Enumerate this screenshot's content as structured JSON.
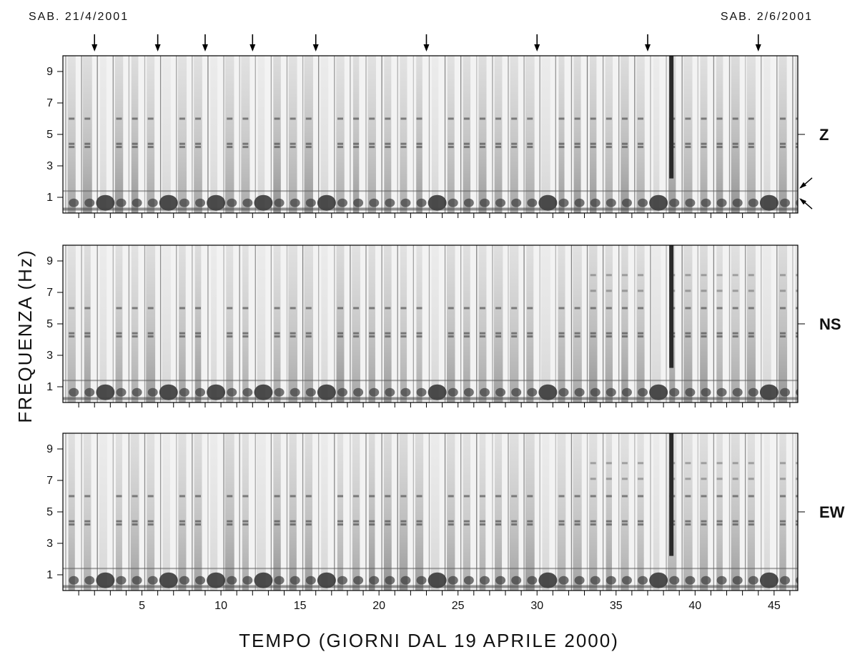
{
  "chart_data": {
    "type": "heatmap",
    "xlabel": "TEMPO (GIORNI DAL 19 APRILE 2000)",
    "ylabel": "FREQUENZA (Hz)",
    "xlim": [
      0,
      46.5
    ],
    "ylim": [
      0,
      10
    ],
    "x_tick_labels": [
      "5",
      "10",
      "15",
      "20",
      "25",
      "30",
      "35",
      "40",
      "45"
    ],
    "x_tick_values": [
      5,
      10,
      15,
      20,
      25,
      30,
      35,
      40,
      45
    ],
    "y_tick_labels": [
      "1",
      "3",
      "5",
      "7",
      "9"
    ],
    "y_tick_values": [
      1,
      3,
      5,
      7,
      9
    ],
    "annotations": {
      "start_note": "SAB. 21/4/2001",
      "end_note": "SAB. 2/6/2001",
      "weekend_arrows_days": [
        2,
        6,
        9,
        12,
        16,
        23,
        30,
        37,
        44
      ],
      "resonance_arrows_hz": [
        1.6,
        0.9
      ]
    },
    "panels": [
      {
        "component": "Z",
        "reference_hz": 5
      },
      {
        "component": "NS",
        "reference_hz": 5
      },
      {
        "component": "EW",
        "reference_hz": 5
      }
    ],
    "features": {
      "daily_stripes": true,
      "spectral_lines_hz": [
        4.2,
        4.4,
        6.0,
        7.1,
        8.1
      ],
      "low_frequency_band_hz": [
        0.3,
        1.4
      ],
      "strong_vertical_event_day": 38.5
    },
    "colormap": {
      "low": "#ffffff",
      "high": "#4a4a4a"
    }
  }
}
